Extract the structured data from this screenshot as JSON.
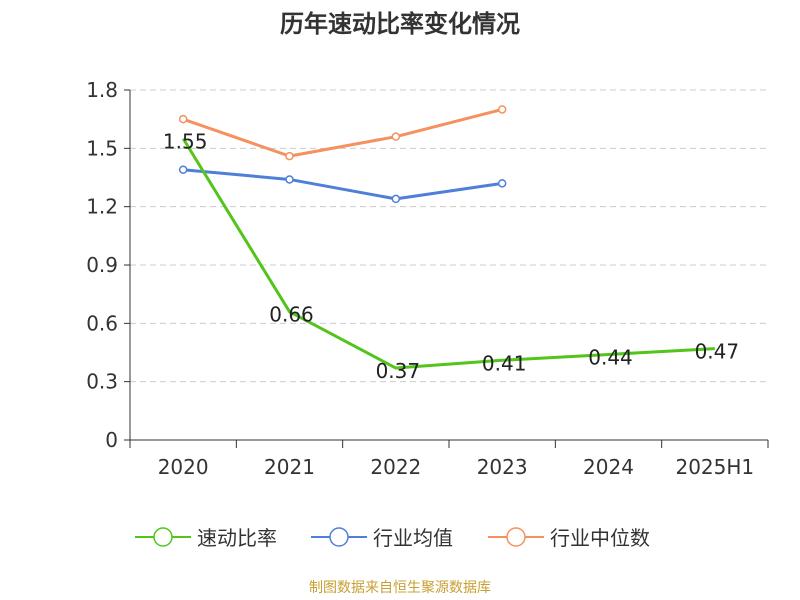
{
  "chart_data": {
    "type": "line",
    "title": "历年速动比率变化情况",
    "categories": [
      "2020",
      "2021",
      "2022",
      "2023",
      "2024",
      "2025H1"
    ],
    "y_ticks": [
      "0",
      "0.3",
      "0.6",
      "0.9",
      "1.2",
      "1.5",
      "1.8"
    ],
    "ylim": [
      0,
      1.8
    ],
    "grid": true,
    "legend_position": "bottom",
    "series": [
      {
        "name": "速动比率",
        "color": "#52c41a",
        "values": [
          1.55,
          0.66,
          0.37,
          0.41,
          0.44,
          0.47
        ],
        "labels": [
          "1.55",
          "0.66",
          "0.37",
          "0.41",
          "0.44",
          "0.47"
        ],
        "markers": false
      },
      {
        "name": "行业均值",
        "color": "#4e7fd9",
        "values": [
          1.39,
          1.34,
          1.24,
          1.32,
          null,
          null
        ],
        "markers": true
      },
      {
        "name": "行业中位数",
        "color": "#f4915e",
        "values": [
          1.65,
          1.46,
          1.56,
          1.7,
          null,
          null
        ],
        "markers": true
      }
    ]
  },
  "footer": {
    "source": "制图数据来自恒生聚源数据库"
  }
}
